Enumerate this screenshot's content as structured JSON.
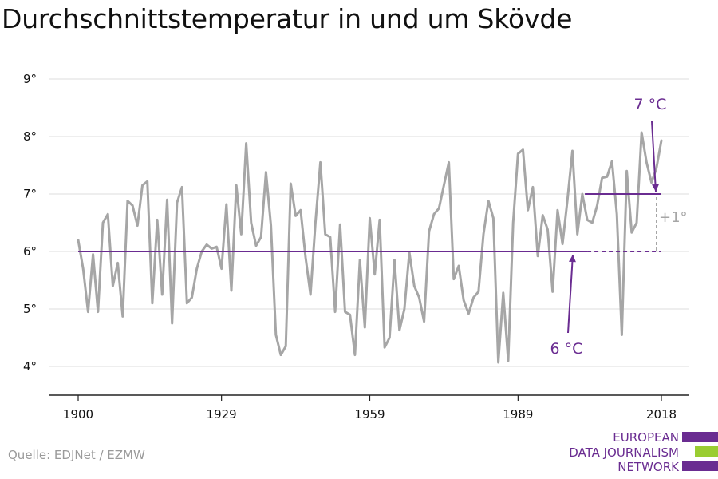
{
  "title": "Durchschnittstemperatur in und um Skövde",
  "source": "Quelle: EDJNet / EZMW",
  "logo": {
    "lines": [
      "EUROPEAN",
      "DATA JOURNALISM",
      "NETWORK"
    ],
    "colors": [
      "#6a2c91",
      "#9acd32",
      "#6a2c91"
    ]
  },
  "colors": {
    "line": "#a6a6a6",
    "accent": "#6a2c91",
    "grid": "#dddddd",
    "axis": "#222222",
    "delta_label": "#a6a6a6"
  },
  "chart_data": {
    "type": "line",
    "title": "Durchschnittstemperatur in und um Skövde",
    "xlabel": "",
    "ylabel": "",
    "xlim": [
      1900,
      2018
    ],
    "ylim": [
      4,
      9
    ],
    "x_ticks": [
      1900,
      1929,
      1959,
      1989,
      2018
    ],
    "x_tick_labels": [
      "1900",
      "1929",
      "1959",
      "1989",
      "2018"
    ],
    "y_ticks": [
      4,
      5,
      6,
      7,
      8,
      9
    ],
    "y_tick_labels": [
      "4°",
      "5°",
      "6°",
      "7°",
      "8°",
      "9°"
    ],
    "grid": true,
    "series": [
      {
        "x": [
          1900,
          1901,
          1902,
          1903,
          1904,
          1905,
          1906,
          1907,
          1908,
          1909,
          1910,
          1911,
          1912,
          1913,
          1914,
          1915,
          1916,
          1917,
          1918,
          1919,
          1920,
          1921,
          1922,
          1923,
          1924,
          1925,
          1926,
          1927,
          1928,
          1929,
          1930,
          1931,
          1932,
          1933,
          1934,
          1935,
          1936,
          1937,
          1938,
          1939,
          1940,
          1941,
          1942,
          1943,
          1944,
          1945,
          1946,
          1947,
          1948,
          1949,
          1950,
          1951,
          1952,
          1953,
          1954,
          1955,
          1956,
          1957,
          1958,
          1959,
          1960,
          1961,
          1962,
          1963,
          1964,
          1965,
          1966,
          1967,
          1968,
          1969,
          1970,
          1971,
          1972,
          1973,
          1974,
          1975,
          1976,
          1977,
          1978,
          1979,
          1980,
          1981,
          1982,
          1983,
          1984,
          1985,
          1986,
          1987,
          1988,
          1989,
          1990,
          1991,
          1992,
          1993,
          1994,
          1995,
          1996,
          1997,
          1998,
          1999,
          2000,
          2001,
          2002,
          2003,
          2004,
          2005,
          2006,
          2007,
          2008,
          2009,
          2010,
          2011,
          2012,
          2013,
          2014,
          2015,
          2016,
          2017,
          2018
        ],
        "values": [
          6.2,
          5.7,
          4.95,
          5.95,
          4.95,
          6.5,
          6.65,
          5.4,
          5.8,
          4.87,
          6.88,
          6.8,
          6.45,
          7.15,
          7.22,
          5.1,
          6.55,
          5.25,
          6.9,
          4.75,
          6.85,
          7.12,
          5.1,
          5.2,
          5.7,
          6.0,
          6.12,
          6.05,
          6.08,
          5.7,
          6.82,
          5.32,
          7.15,
          6.3,
          7.88,
          6.5,
          6.1,
          6.25,
          7.38,
          6.45,
          4.55,
          4.2,
          4.35,
          7.18,
          6.62,
          6.72,
          5.9,
          5.25,
          6.5,
          7.55,
          6.3,
          6.25,
          4.95,
          6.47,
          4.95,
          4.9,
          4.2,
          5.85,
          4.68,
          6.58,
          5.6,
          6.55,
          4.33,
          4.5,
          5.85,
          4.63,
          5.0,
          5.98,
          5.4,
          5.2,
          4.78,
          6.35,
          6.65,
          6.75,
          7.15,
          7.55,
          5.52,
          5.75,
          5.15,
          4.92,
          5.2,
          5.3,
          6.3,
          6.88,
          6.58,
          4.07,
          5.28,
          4.1,
          6.5,
          7.7,
          7.77,
          6.72,
          7.12,
          5.92,
          6.63,
          6.38,
          5.3,
          6.72,
          6.13,
          6.9,
          7.75,
          6.3,
          7.0,
          6.55,
          6.5,
          6.8,
          7.28,
          7.3,
          7.57,
          6.65,
          4.55,
          7.4,
          6.33,
          6.5,
          8.07,
          7.55,
          7.2,
          7.45,
          7.93
        ],
        "color": "#a6a6a6"
      }
    ],
    "reference_lines": [
      {
        "value": 6,
        "x_from": 1900,
        "x_to": 2003
      },
      {
        "value": 7,
        "x_from": 2003,
        "x_to": 2018
      }
    ],
    "annotations": [
      {
        "text": "7 °C",
        "x": 2018,
        "y": 7
      },
      {
        "text": "6 °C",
        "x": 2003,
        "y": 6
      },
      {
        "text": "+1°"
      }
    ]
  }
}
